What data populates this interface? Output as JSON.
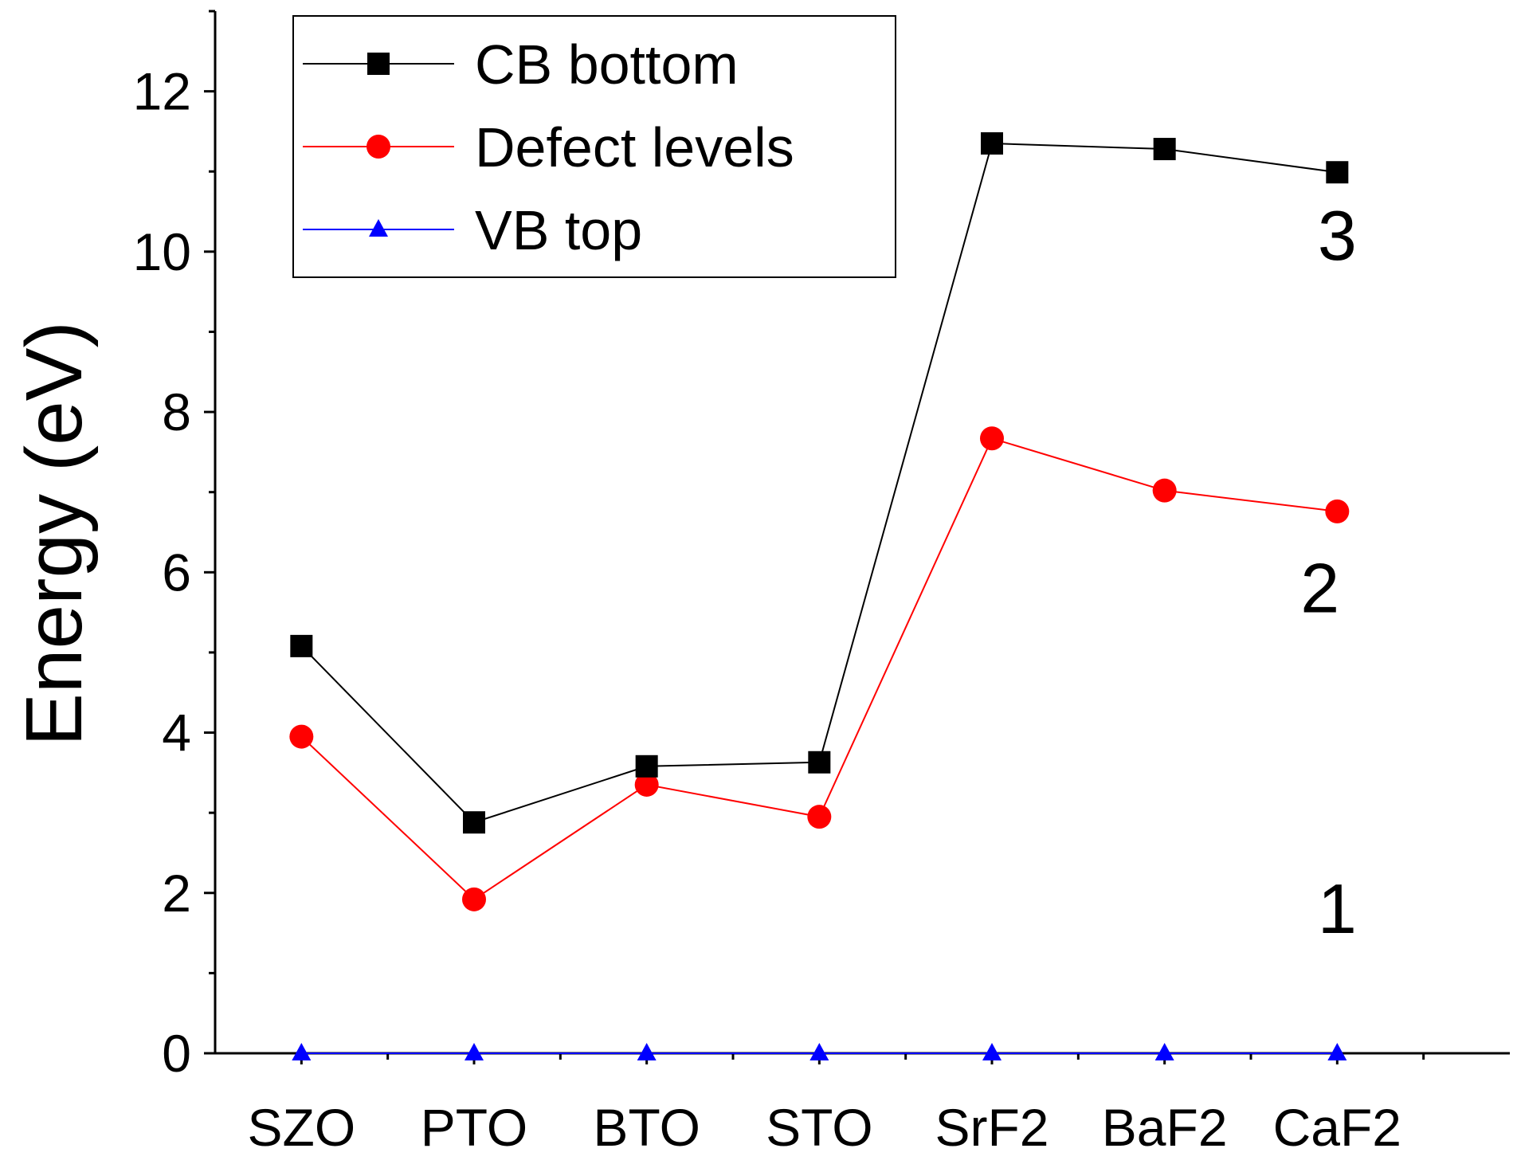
{
  "chart_data": {
    "type": "line",
    "title": "",
    "xlabel": "",
    "ylabel": "Energy (eV)",
    "categories": [
      "SZO",
      "PTO",
      "BTO",
      "STO",
      "SrF2",
      "BaF2",
      "CaF2"
    ],
    "ylim": [
      0,
      13
    ],
    "yticks": [
      0,
      2,
      4,
      6,
      8,
      10,
      12
    ],
    "legend_position": "top-left",
    "series": [
      {
        "name": "CB bottom",
        "color": "#000000",
        "marker": "square",
        "values": [
          5.08,
          2.88,
          3.58,
          3.63,
          11.35,
          11.28,
          10.99
        ]
      },
      {
        "name": "Defect levels",
        "color": "#ff0000",
        "marker": "circle",
        "values": [
          3.95,
          1.92,
          3.35,
          2.95,
          7.67,
          7.02,
          6.76
        ]
      },
      {
        "name": "VB top",
        "color": "#0000ff",
        "marker": "triangle",
        "values": [
          0,
          0,
          0,
          0,
          0,
          0,
          0
        ]
      }
    ],
    "annotations": [
      {
        "text": "3",
        "x": 6.0,
        "y": 9.9
      },
      {
        "text": "2",
        "x": 5.9,
        "y": 5.5
      },
      {
        "text": "1",
        "x": 6.0,
        "y": 1.5
      }
    ]
  }
}
